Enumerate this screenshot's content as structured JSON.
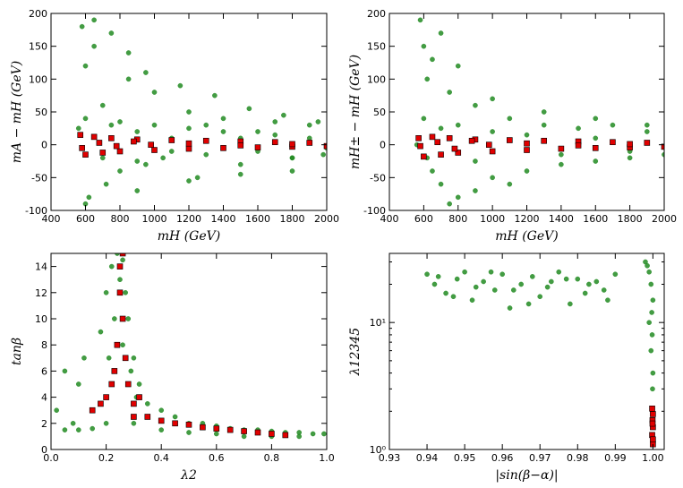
{
  "chart_data": [
    {
      "type": "scatter",
      "xlabel": "mH (GeV)",
      "ylabel": "mA − mH (GeV)",
      "xlim": [
        400,
        2000
      ],
      "ylim": [
        -100,
        200
      ],
      "xticks": [
        400,
        600,
        800,
        1000,
        1200,
        1400,
        1600,
        1800,
        2000
      ],
      "yticks": [
        -100,
        -50,
        0,
        50,
        100,
        150,
        200
      ],
      "series": [
        {
          "color": "#228b22",
          "marker": "circle",
          "x": [
            580,
            600,
            620,
            650,
            700,
            720,
            750,
            800,
            850,
            900,
            950,
            1000,
            1050,
            1100,
            1200,
            1250,
            1300,
            1400,
            1500,
            1600,
            1700,
            1800,
            1900,
            1980,
            560,
            600,
            700,
            800,
            900,
            1000,
            1100,
            1200,
            1300,
            1400,
            1500,
            1600,
            1700,
            1800,
            1900,
            2000,
            650,
            750,
            850,
            950,
            1150,
            1350,
            1550,
            1750,
            1950,
            600,
            900,
            1200,
            1500,
            1800
          ],
          "y": [
            180,
            120,
            -80,
            150,
            60,
            -60,
            30,
            -40,
            100,
            20,
            -30,
            80,
            -20,
            10,
            50,
            -50,
            30,
            40,
            -30,
            20,
            35,
            -20,
            30,
            -15,
            25,
            40,
            -20,
            35,
            -25,
            30,
            -10,
            25,
            -15,
            20,
            10,
            -10,
            15,
            -20,
            10,
            -5,
            190,
            170,
            140,
            110,
            90,
            75,
            55,
            45,
            35,
            -90,
            -70,
            -55,
            -45,
            -40
          ]
        },
        {
          "color": "#e00000",
          "marker": "square",
          "x": [
            570,
            600,
            650,
            700,
            750,
            800,
            900,
            1000,
            1100,
            1200,
            1300,
            1400,
            1500,
            1600,
            1700,
            1800,
            1900,
            2000,
            580,
            680,
            780,
            880,
            980,
            1200,
            1500,
            1800
          ],
          "y": [
            15,
            -15,
            12,
            -12,
            10,
            -10,
            8,
            -8,
            7,
            -6,
            6,
            -5,
            5,
            -4,
            4,
            -3,
            3,
            -2,
            -5,
            3,
            -2,
            5,
            0,
            2,
            -1,
            1
          ]
        }
      ]
    },
    {
      "type": "scatter",
      "xlabel": "mH (GeV)",
      "ylabel": "mH± − mH (GeV)",
      "xlim": [
        400,
        2000
      ],
      "ylim": [
        -100,
        200
      ],
      "xticks": [
        400,
        600,
        800,
        1000,
        1200,
        1400,
        1600,
        1800,
        2000
      ],
      "yticks": [
        -100,
        -50,
        0,
        50,
        100,
        150,
        200
      ],
      "series": [
        {
          "color": "#228b22",
          "marker": "circle",
          "x": [
            560,
            580,
            600,
            620,
            650,
            700,
            750,
            800,
            900,
            1000,
            1100,
            1200,
            1300,
            1400,
            1500,
            1600,
            1700,
            1800,
            1900,
            2000,
            600,
            650,
            700,
            800,
            900,
            1000,
            1200,
            1400,
            1600,
            1800,
            620,
            700,
            800,
            1000,
            1300,
            1600,
            1900,
            750,
            900,
            1100
          ],
          "y": [
            0,
            190,
            150,
            -20,
            130,
            -60,
            80,
            -80,
            60,
            -50,
            40,
            -40,
            30,
            -30,
            25,
            -25,
            30,
            -20,
            20,
            -15,
            40,
            -40,
            25,
            30,
            -25,
            20,
            15,
            -15,
            10,
            -10,
            100,
            170,
            120,
            70,
            50,
            40,
            30,
            -90,
            -70,
            -60
          ]
        },
        {
          "color": "#e00000",
          "marker": "square",
          "x": [
            570,
            600,
            650,
            700,
            750,
            800,
            900,
            1000,
            1100,
            1200,
            1300,
            1400,
            1500,
            1600,
            1700,
            1800,
            1900,
            2000,
            580,
            680,
            780,
            880,
            980,
            1200,
            1500,
            1800
          ],
          "y": [
            10,
            -18,
            12,
            -15,
            10,
            -12,
            8,
            -10,
            7,
            -8,
            6,
            -6,
            5,
            -5,
            4,
            -4,
            3,
            -3,
            -2,
            4,
            -6,
            6,
            0,
            2,
            -1,
            1
          ]
        }
      ]
    },
    {
      "type": "scatter",
      "xlabel": "λ2",
      "ylabel": "tanβ",
      "xlim": [
        0,
        1
      ],
      "ylim": [
        0,
        15
      ],
      "xticks": [
        {
          "value": 0,
          "label": "0.0"
        },
        0.2,
        0.4,
        0.6,
        0.8,
        {
          "value": 1,
          "label": "1.0"
        }
      ],
      "yticks": [
        0,
        2,
        4,
        6,
        8,
        10,
        12,
        14
      ],
      "series": [
        {
          "color": "#228b22",
          "marker": "circle",
          "x": [
            0.02,
            0.05,
            0.08,
            0.1,
            0.12,
            0.15,
            0.18,
            0.2,
            0.22,
            0.24,
            0.25,
            0.26,
            0.27,
            0.28,
            0.3,
            0.32,
            0.35,
            0.4,
            0.45,
            0.5,
            0.55,
            0.6,
            0.65,
            0.7,
            0.75,
            0.8,
            0.85,
            0.9,
            0.95,
            0.99,
            0.05,
            0.1,
            0.15,
            0.2,
            0.3,
            0.4,
            0.5,
            0.6,
            0.7,
            0.8,
            0.9,
            0.23,
            0.26,
            0.29,
            0.21,
            0.31
          ],
          "y": [
            3,
            6,
            2,
            5,
            7,
            3,
            9,
            12,
            14,
            15,
            13,
            14.5,
            12,
            10,
            7,
            5,
            3.5,
            3,
            2.5,
            2,
            2,
            1.8,
            1.6,
            1.5,
            1.5,
            1.4,
            1.3,
            1.3,
            1.2,
            1.2,
            1.5,
            1.5,
            1.6,
            2,
            2,
            1.5,
            1.3,
            1.2,
            1,
            1,
            1,
            10,
            8,
            6,
            7,
            4
          ]
        },
        {
          "color": "#e00000",
          "marker": "square",
          "x": [
            0.15,
            0.18,
            0.2,
            0.22,
            0.24,
            0.25,
            0.26,
            0.26,
            0.27,
            0.25,
            0.28,
            0.3,
            0.35,
            0.4,
            0.45,
            0.5,
            0.55,
            0.6,
            0.65,
            0.7,
            0.75,
            0.8,
            0.85,
            0.23,
            0.3,
            0.32
          ],
          "y": [
            3,
            3.5,
            4,
            5,
            8,
            12,
            15,
            10,
            7,
            14,
            5,
            3.5,
            2.5,
            2.2,
            2,
            1.9,
            1.7,
            1.6,
            1.5,
            1.4,
            1.3,
            1.2,
            1.1,
            6,
            2.5,
            4
          ]
        }
      ]
    },
    {
      "type": "scatter",
      "xlabel": "|sin(β−α)|",
      "ylabel": "λ12345",
      "log_y": true,
      "xlim": [
        0.93,
        1.003
      ],
      "ylim": [
        1,
        35
      ],
      "xticks": [
        0.93,
        0.94,
        0.95,
        0.96,
        0.97,
        0.98,
        0.99,
        {
          "value": 1,
          "label": "1.00"
        }
      ],
      "yticks": [
        {
          "value": 1,
          "label": "10⁰"
        },
        {
          "value": 10,
          "label": "10¹"
        }
      ],
      "series": [
        {
          "color": "#228b22",
          "marker": "circle",
          "x": [
            0.94,
            0.942,
            0.945,
            0.948,
            0.95,
            0.952,
            0.955,
            0.958,
            0.96,
            0.962,
            0.965,
            0.968,
            0.97,
            0.972,
            0.975,
            0.978,
            0.98,
            0.982,
            0.985,
            0.988,
            0.99,
            0.943,
            0.953,
            0.963,
            0.973,
            0.983,
            0.947,
            0.957,
            0.967,
            0.977,
            0.987,
            0.998,
            0.999,
            0.9995,
            1.0,
            0.9985,
            0.999,
            0.9995,
            1.0,
            0.9998,
            0.9997,
            0.9999
          ],
          "y": [
            24,
            20,
            17,
            22,
            25,
            15,
            21,
            18,
            24,
            13,
            20,
            23,
            16,
            19,
            25,
            14,
            22,
            17,
            21,
            15,
            24,
            23,
            19,
            18,
            21,
            20,
            16,
            25,
            14,
            22,
            18,
            30,
            25,
            20,
            15,
            28,
            10,
            6,
            4,
            8,
            12,
            3
          ]
        },
        {
          "color": "#e00000",
          "marker": "square",
          "x": [
            1.0,
            0.9998,
            1.0,
            0.9999,
            1.0,
            0.9998,
            1.0,
            0.9999
          ],
          "y": [
            1.1,
            1.3,
            1.5,
            1.7,
            1.9,
            2.1,
            1.2,
            1.6
          ]
        }
      ]
    }
  ]
}
